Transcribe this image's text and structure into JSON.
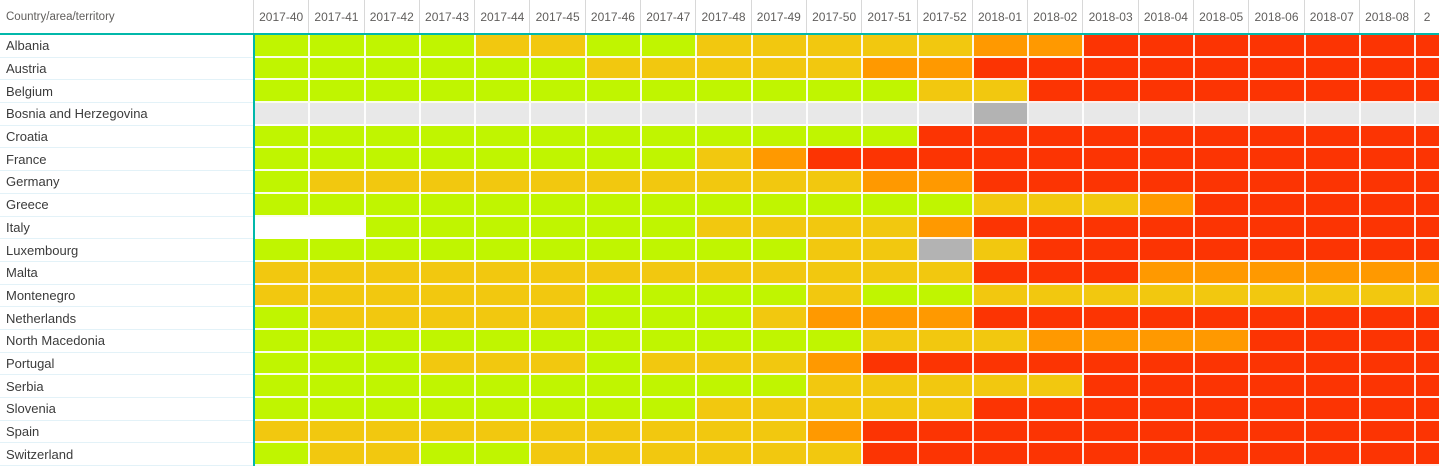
{
  "chart_data": {
    "type": "heatmap",
    "corner_label": "Country/area/territory",
    "columns": [
      "2017-40",
      "2017-41",
      "2017-42",
      "2017-43",
      "2017-44",
      "2017-45",
      "2017-46",
      "2017-47",
      "2017-48",
      "2017-49",
      "2017-50",
      "2017-51",
      "2017-52",
      "2018-01",
      "2018-02",
      "2018-03",
      "2018-04",
      "2018-05",
      "2018-06",
      "2018-07",
      "2018-08"
    ],
    "partial_last_column_label": "2",
    "legend_note": "cell letters map to palette colors: G=green(low) Y=yellow O=orange R=red N=light-gray D=dark-gray W=white/blank",
    "palette": {
      "G": "#C0F500",
      "Y": "#F2C80F",
      "O": "#FF9900",
      "R": "#FC3403",
      "N": "#E8E8E8",
      "D": "#B3B3B3",
      "W": "#FFFFFF"
    },
    "rows": [
      {
        "name": "Albania",
        "cells": "GGGGYYGGYYYYYOORRRRRRR"
      },
      {
        "name": "Austria",
        "cells": "GGGGGGYYYYYOORRRRRRRRR"
      },
      {
        "name": "Belgium",
        "cells": "GGGGGGGGGGGGYYRRRRRRRR"
      },
      {
        "name": "Bosnia and Herzegovina",
        "cells": "NNNNNNNNNNNNNDNNNNNNNN"
      },
      {
        "name": "Croatia",
        "cells": "GGGGGGGGGGGGRRRRRRRRRR"
      },
      {
        "name": "France",
        "cells": "GGGGGGGGYORRRRRRRRRRRR"
      },
      {
        "name": "Germany",
        "cells": "GYYYYYYYYYYOORRRRRRRRR"
      },
      {
        "name": "Greece",
        "cells": "GGGGGGGGGGGGGYYYORRRRR"
      },
      {
        "name": "Italy",
        "cells": "WWGGGGGGYYYYORRRRRRRRR"
      },
      {
        "name": "Luxembourg",
        "cells": "GGGGGGGGGGYYDYRRRRRRRR"
      },
      {
        "name": "Malta",
        "cells": "YYYYYYYYYYYYYRRROOOOOO"
      },
      {
        "name": "Montenegro",
        "cells": "YYYYYYGGGGYGGYYYYYYYYY"
      },
      {
        "name": "Netherlands",
        "cells": "GYYYYYGGGYOOORRRRRRRRR"
      },
      {
        "name": "North Macedonia",
        "cells": "GGGGGGGGGGGYYYOOOORRRR"
      },
      {
        "name": "Portugal",
        "cells": "GGGYYYGYYYORRRRRRRRRRR"
      },
      {
        "name": "Serbia",
        "cells": "GGGGGGGGGGYYYYYRRRRRRR"
      },
      {
        "name": "Slovenia",
        "cells": "GGGGGGGGYYYYYRRRRRRRRR"
      },
      {
        "name": "Spain",
        "cells": "YYYYYYYYYYORRRRRRRRRRR"
      },
      {
        "name": "Switzerland",
        "cells": "GYYGGYYYYYYRRRRRRRRRRR"
      }
    ],
    "layout": {
      "accent_teal": "#01B8AA",
      "header_text_color": "#605E5C",
      "row_label_text_color": "#3B3B3B",
      "label_separator_color": "#E3F2F8",
      "header_tick_color": "#D8D8D8"
    }
  }
}
